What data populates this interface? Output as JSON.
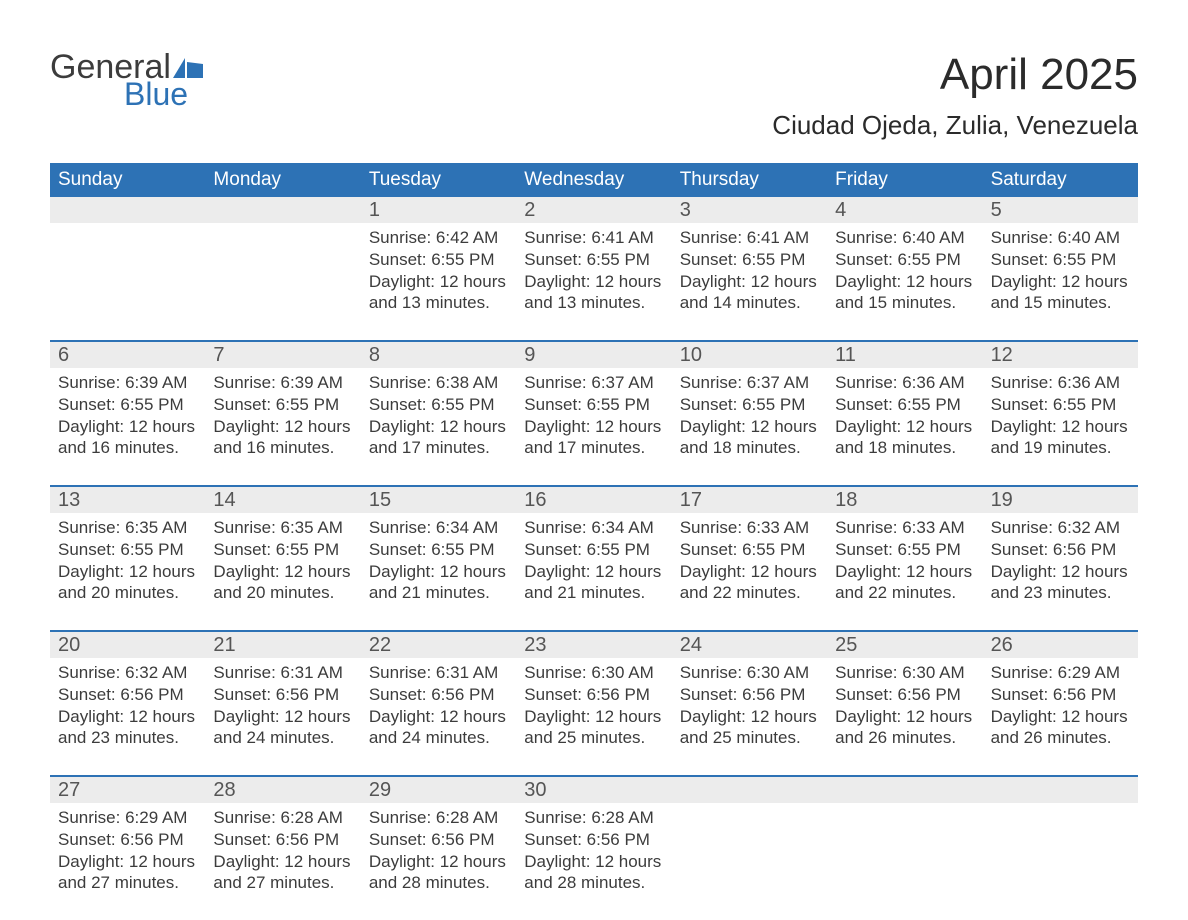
{
  "logo": {
    "word_general": "General",
    "word_blue": "Blue",
    "flag_color": "#2d72b5"
  },
  "title": "April 2025",
  "location": "Ciudad Ojeda, Zulia, Venezuela",
  "colors": {
    "header_bg": "#2d72b5",
    "header_text": "#ffffff",
    "daynum_bg": "#ececec",
    "body_text": "#3c3c3c",
    "rule": "#2d72b5"
  },
  "dow": [
    "Sunday",
    "Monday",
    "Tuesday",
    "Wednesday",
    "Thursday",
    "Friday",
    "Saturday"
  ],
  "weeks": [
    [
      {
        "n": "",
        "sunrise": "",
        "sunset": "",
        "daylight": ""
      },
      {
        "n": "",
        "sunrise": "",
        "sunset": "",
        "daylight": ""
      },
      {
        "n": "1",
        "sunrise": "Sunrise: 6:42 AM",
        "sunset": "Sunset: 6:55 PM",
        "daylight": "Daylight: 12 hours and 13 minutes."
      },
      {
        "n": "2",
        "sunrise": "Sunrise: 6:41 AM",
        "sunset": "Sunset: 6:55 PM",
        "daylight": "Daylight: 12 hours and 13 minutes."
      },
      {
        "n": "3",
        "sunrise": "Sunrise: 6:41 AM",
        "sunset": "Sunset: 6:55 PM",
        "daylight": "Daylight: 12 hours and 14 minutes."
      },
      {
        "n": "4",
        "sunrise": "Sunrise: 6:40 AM",
        "sunset": "Sunset: 6:55 PM",
        "daylight": "Daylight: 12 hours and 15 minutes."
      },
      {
        "n": "5",
        "sunrise": "Sunrise: 6:40 AM",
        "sunset": "Sunset: 6:55 PM",
        "daylight": "Daylight: 12 hours and 15 minutes."
      }
    ],
    [
      {
        "n": "6",
        "sunrise": "Sunrise: 6:39 AM",
        "sunset": "Sunset: 6:55 PM",
        "daylight": "Daylight: 12 hours and 16 minutes."
      },
      {
        "n": "7",
        "sunrise": "Sunrise: 6:39 AM",
        "sunset": "Sunset: 6:55 PM",
        "daylight": "Daylight: 12 hours and 16 minutes."
      },
      {
        "n": "8",
        "sunrise": "Sunrise: 6:38 AM",
        "sunset": "Sunset: 6:55 PM",
        "daylight": "Daylight: 12 hours and 17 minutes."
      },
      {
        "n": "9",
        "sunrise": "Sunrise: 6:37 AM",
        "sunset": "Sunset: 6:55 PM",
        "daylight": "Daylight: 12 hours and 17 minutes."
      },
      {
        "n": "10",
        "sunrise": "Sunrise: 6:37 AM",
        "sunset": "Sunset: 6:55 PM",
        "daylight": "Daylight: 12 hours and 18 minutes."
      },
      {
        "n": "11",
        "sunrise": "Sunrise: 6:36 AM",
        "sunset": "Sunset: 6:55 PM",
        "daylight": "Daylight: 12 hours and 18 minutes."
      },
      {
        "n": "12",
        "sunrise": "Sunrise: 6:36 AM",
        "sunset": "Sunset: 6:55 PM",
        "daylight": "Daylight: 12 hours and 19 minutes."
      }
    ],
    [
      {
        "n": "13",
        "sunrise": "Sunrise: 6:35 AM",
        "sunset": "Sunset: 6:55 PM",
        "daylight": "Daylight: 12 hours and 20 minutes."
      },
      {
        "n": "14",
        "sunrise": "Sunrise: 6:35 AM",
        "sunset": "Sunset: 6:55 PM",
        "daylight": "Daylight: 12 hours and 20 minutes."
      },
      {
        "n": "15",
        "sunrise": "Sunrise: 6:34 AM",
        "sunset": "Sunset: 6:55 PM",
        "daylight": "Daylight: 12 hours and 21 minutes."
      },
      {
        "n": "16",
        "sunrise": "Sunrise: 6:34 AM",
        "sunset": "Sunset: 6:55 PM",
        "daylight": "Daylight: 12 hours and 21 minutes."
      },
      {
        "n": "17",
        "sunrise": "Sunrise: 6:33 AM",
        "sunset": "Sunset: 6:55 PM",
        "daylight": "Daylight: 12 hours and 22 minutes."
      },
      {
        "n": "18",
        "sunrise": "Sunrise: 6:33 AM",
        "sunset": "Sunset: 6:55 PM",
        "daylight": "Daylight: 12 hours and 22 minutes."
      },
      {
        "n": "19",
        "sunrise": "Sunrise: 6:32 AM",
        "sunset": "Sunset: 6:56 PM",
        "daylight": "Daylight: 12 hours and 23 minutes."
      }
    ],
    [
      {
        "n": "20",
        "sunrise": "Sunrise: 6:32 AM",
        "sunset": "Sunset: 6:56 PM",
        "daylight": "Daylight: 12 hours and 23 minutes."
      },
      {
        "n": "21",
        "sunrise": "Sunrise: 6:31 AM",
        "sunset": "Sunset: 6:56 PM",
        "daylight": "Daylight: 12 hours and 24 minutes."
      },
      {
        "n": "22",
        "sunrise": "Sunrise: 6:31 AM",
        "sunset": "Sunset: 6:56 PM",
        "daylight": "Daylight: 12 hours and 24 minutes."
      },
      {
        "n": "23",
        "sunrise": "Sunrise: 6:30 AM",
        "sunset": "Sunset: 6:56 PM",
        "daylight": "Daylight: 12 hours and 25 minutes."
      },
      {
        "n": "24",
        "sunrise": "Sunrise: 6:30 AM",
        "sunset": "Sunset: 6:56 PM",
        "daylight": "Daylight: 12 hours and 25 minutes."
      },
      {
        "n": "25",
        "sunrise": "Sunrise: 6:30 AM",
        "sunset": "Sunset: 6:56 PM",
        "daylight": "Daylight: 12 hours and 26 minutes."
      },
      {
        "n": "26",
        "sunrise": "Sunrise: 6:29 AM",
        "sunset": "Sunset: 6:56 PM",
        "daylight": "Daylight: 12 hours and 26 minutes."
      }
    ],
    [
      {
        "n": "27",
        "sunrise": "Sunrise: 6:29 AM",
        "sunset": "Sunset: 6:56 PM",
        "daylight": "Daylight: 12 hours and 27 minutes."
      },
      {
        "n": "28",
        "sunrise": "Sunrise: 6:28 AM",
        "sunset": "Sunset: 6:56 PM",
        "daylight": "Daylight: 12 hours and 27 minutes."
      },
      {
        "n": "29",
        "sunrise": "Sunrise: 6:28 AM",
        "sunset": "Sunset: 6:56 PM",
        "daylight": "Daylight: 12 hours and 28 minutes."
      },
      {
        "n": "30",
        "sunrise": "Sunrise: 6:28 AM",
        "sunset": "Sunset: 6:56 PM",
        "daylight": "Daylight: 12 hours and 28 minutes."
      },
      {
        "n": "",
        "sunrise": "",
        "sunset": "",
        "daylight": ""
      },
      {
        "n": "",
        "sunrise": "",
        "sunset": "",
        "daylight": ""
      },
      {
        "n": "",
        "sunrise": "",
        "sunset": "",
        "daylight": ""
      }
    ]
  ]
}
